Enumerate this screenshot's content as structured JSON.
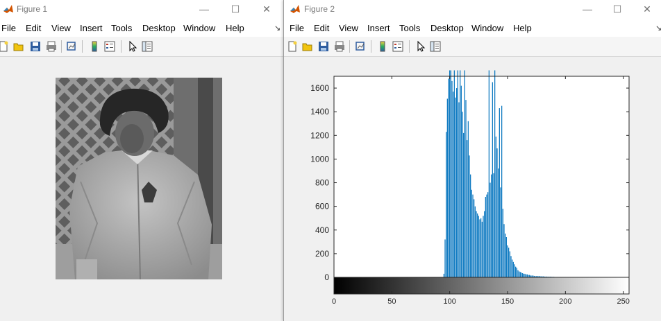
{
  "figure1": {
    "title": "Figure 1",
    "menu": [
      "File",
      "Edit",
      "View",
      "Insert",
      "Tools",
      "Desktop",
      "Window",
      "Help"
    ],
    "overflow_glyph": "↘",
    "controls": {
      "minimize": "—",
      "maximize": "☐",
      "close": "✕"
    }
  },
  "figure2": {
    "title": "Figure 2",
    "menu": [
      "File",
      "Edit",
      "View",
      "Insert",
      "Tools",
      "Desktop",
      "Window",
      "Help"
    ],
    "overflow_glyph": "↘",
    "controls": {
      "minimize": "—",
      "maximize": "☐",
      "close": "✕"
    }
  },
  "toolbar_icons": [
    "new-figure-icon",
    "open-file-icon",
    "save-icon",
    "print-icon",
    "link-plot-icon",
    "colorbar-icon",
    "legend-icon",
    "edit-plot-icon",
    "property-inspector-icon"
  ],
  "colors": {
    "bar": "#0072bd",
    "axes": "#262626",
    "titlebar": "#ffffff",
    "window_bg": "#f0f0f0"
  },
  "chart_data": {
    "type": "bar",
    "title": "",
    "xlabel": "",
    "ylabel": "",
    "xlim": [
      0,
      255
    ],
    "ylim": [
      0,
      1700
    ],
    "xticks": [
      0,
      50,
      100,
      150,
      200,
      250
    ],
    "yticks": [
      0,
      200,
      400,
      600,
      800,
      1000,
      1200,
      1400,
      1600
    ],
    "grid": false,
    "colorbar": "grayscale 0-255 below x axis",
    "x": [
      95,
      96,
      97,
      98,
      99,
      100,
      101,
      102,
      103,
      104,
      105,
      106,
      107,
      108,
      109,
      110,
      111,
      112,
      113,
      114,
      115,
      116,
      117,
      118,
      119,
      120,
      121,
      122,
      123,
      124,
      125,
      126,
      127,
      128,
      129,
      130,
      131,
      132,
      133,
      134,
      135,
      136,
      137,
      138,
      139,
      140,
      141,
      142,
      143,
      144,
      145,
      146,
      147,
      148,
      149,
      150,
      151,
      152,
      153,
      154,
      155,
      156,
      157,
      158,
      159,
      160,
      161,
      162,
      163,
      164,
      165,
      166,
      167,
      168,
      169,
      170,
      171,
      172,
      173,
      174,
      175,
      176,
      177,
      178,
      179,
      180,
      181,
      182,
      183,
      184,
      185,
      186,
      187,
      188,
      189,
      190,
      191,
      192,
      193,
      194,
      195,
      196,
      197,
      198,
      199,
      200,
      205,
      210,
      215,
      220
    ],
    "values": [
      30,
      320,
      1230,
      1510,
      1680,
      1750,
      1750,
      1660,
      1570,
      1750,
      1520,
      1600,
      1750,
      1480,
      1750,
      1620,
      1400,
      1220,
      1750,
      1500,
      1160,
      1320,
      1030,
      870,
      740,
      700,
      660,
      600,
      560,
      540,
      520,
      490,
      500,
      470,
      520,
      560,
      680,
      700,
      720,
      1750,
      800,
      870,
      1650,
      880,
      1750,
      1190,
      1090,
      920,
      1430,
      760,
      1450,
      580,
      450,
      370,
      340,
      270,
      250,
      220,
      180,
      150,
      130,
      110,
      90,
      80,
      60,
      50,
      45,
      40,
      35,
      30,
      30,
      25,
      25,
      20,
      20,
      15,
      15,
      15,
      12,
      10,
      10,
      10,
      10,
      10,
      8,
      8,
      8,
      6,
      6,
      6,
      5,
      5,
      5,
      4,
      4,
      4,
      3,
      3,
      3,
      3,
      3,
      3,
      3,
      3,
      3,
      3,
      3,
      3,
      3,
      3
    ]
  }
}
